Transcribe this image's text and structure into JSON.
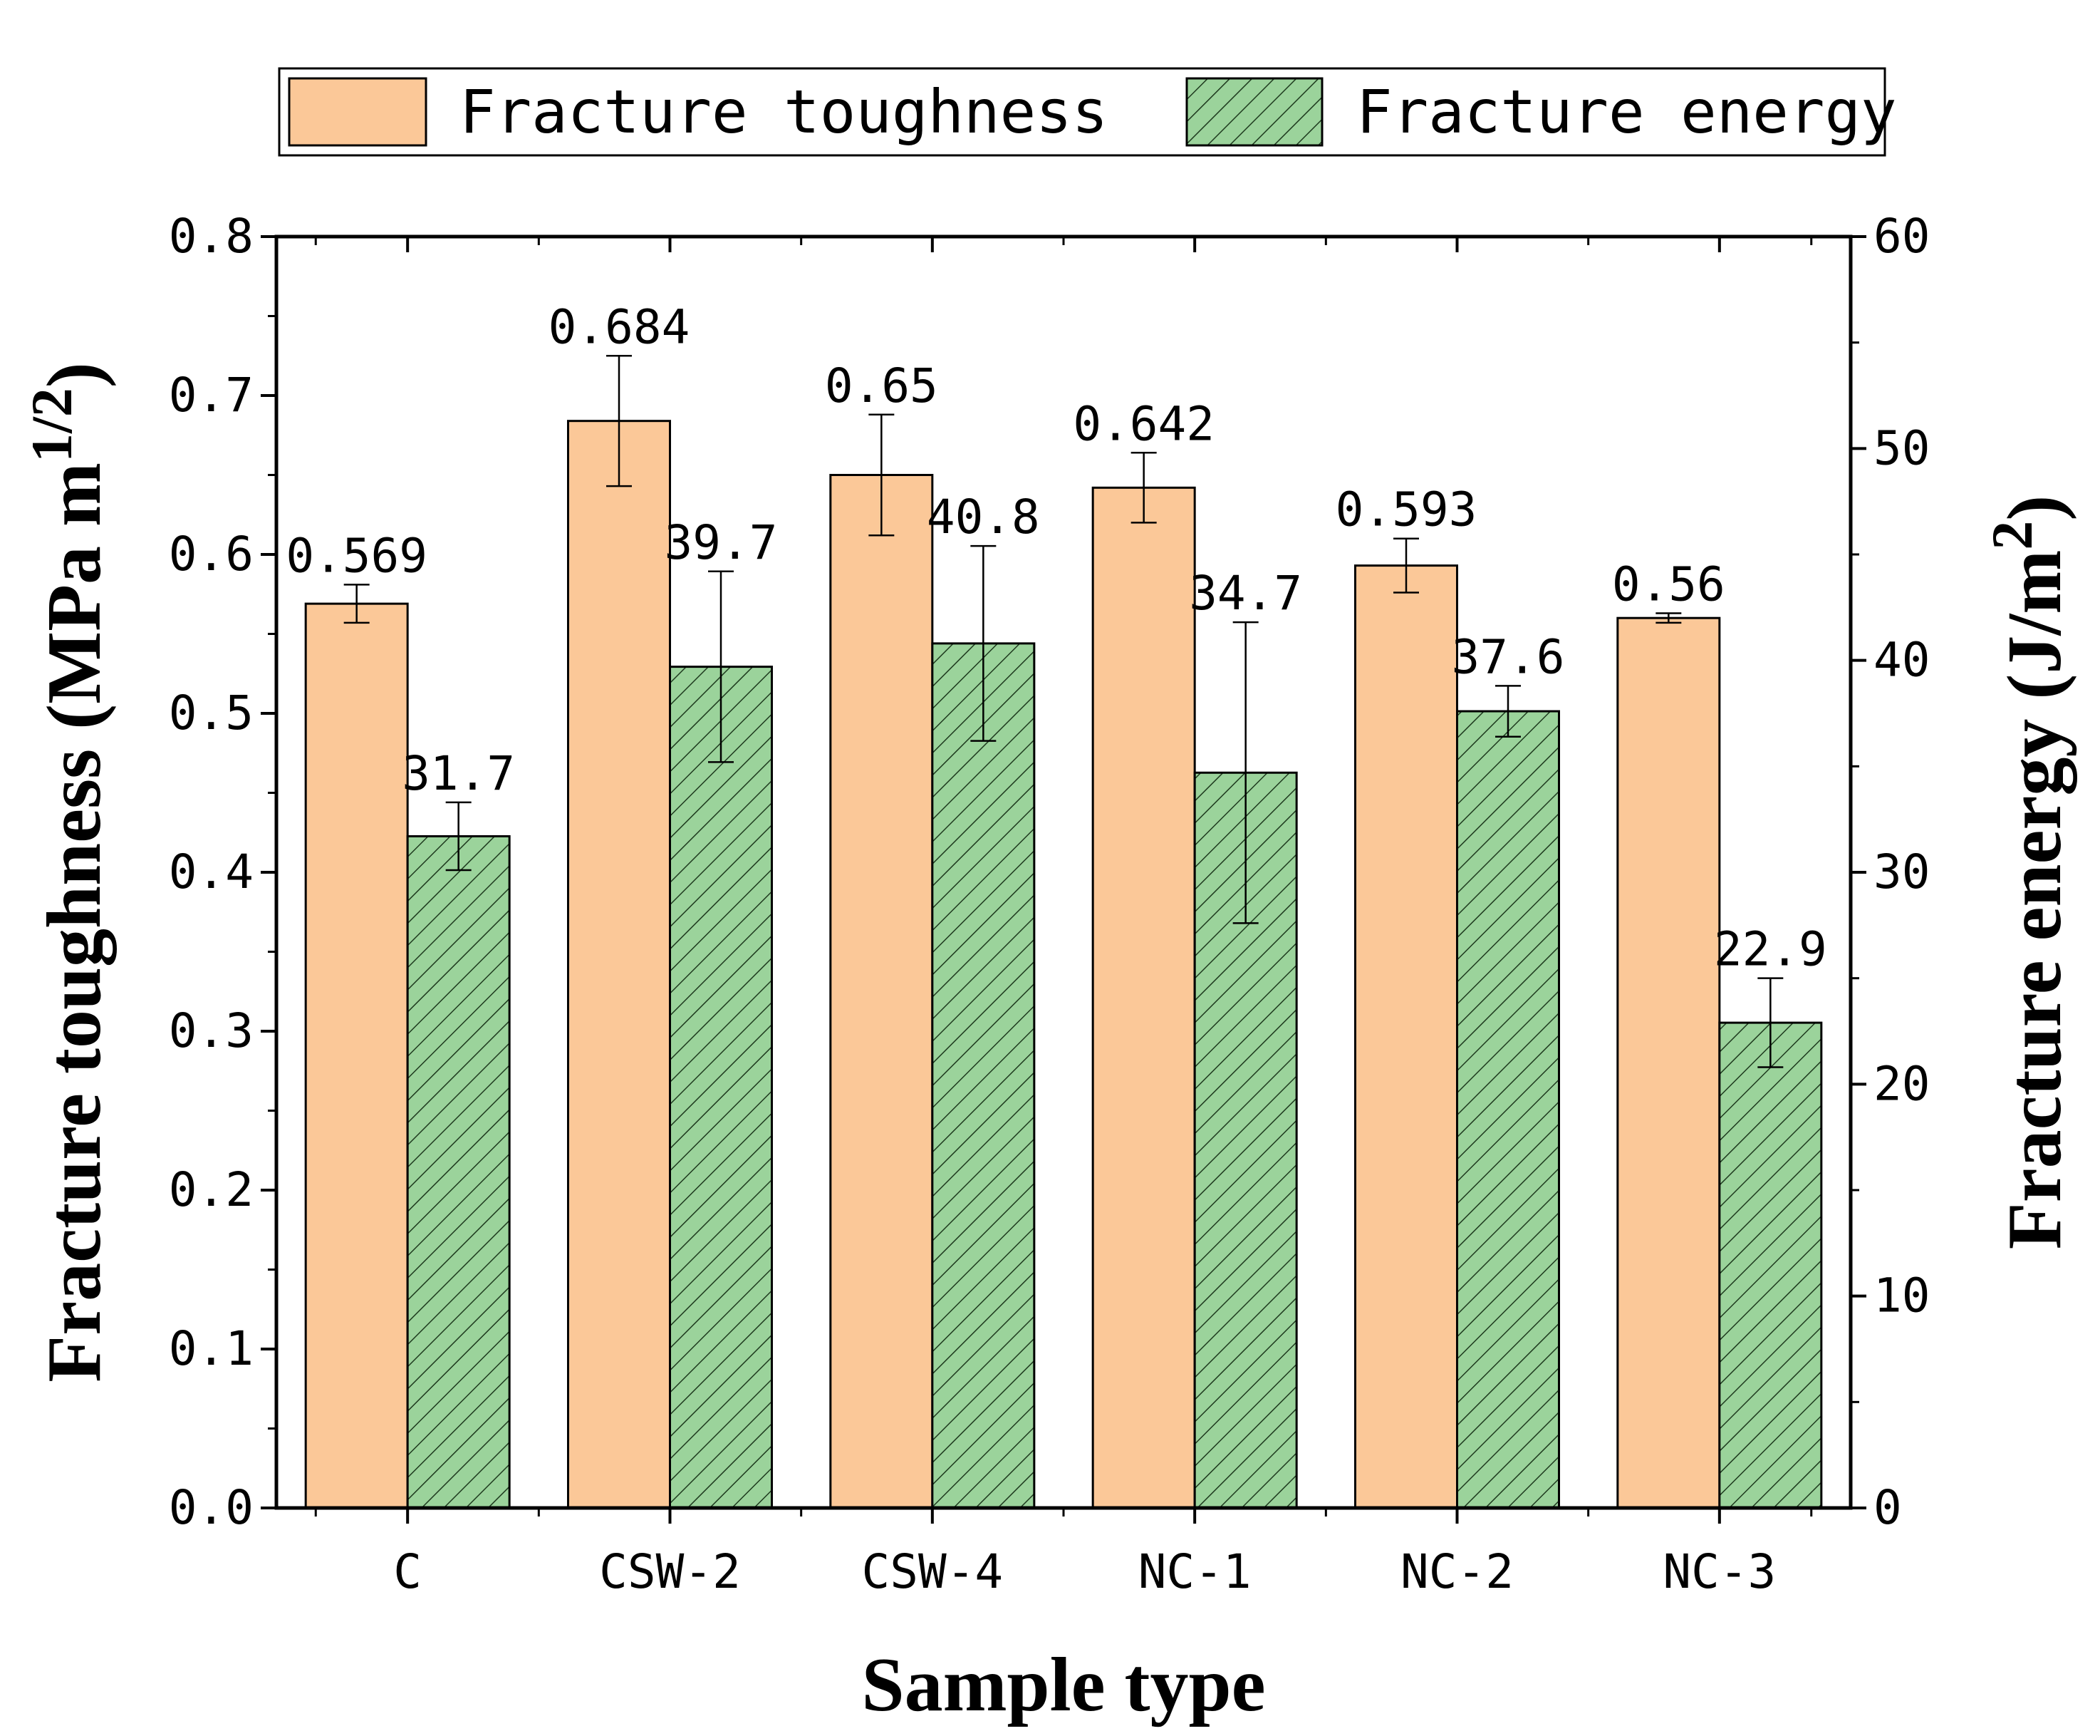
{
  "chart_data": {
    "type": "bar",
    "categories": [
      "C",
      "CSW-2",
      "CSW-4",
      "NC-1",
      "NC-2",
      "NC-3"
    ],
    "series": [
      {
        "name": "Fracture toughness",
        "axis": "left",
        "values": [
          0.569,
          0.684,
          0.65,
          0.642,
          0.593,
          0.56
        ],
        "value_labels": [
          "0.569",
          "0.684",
          "0.65",
          "0.642",
          "0.593",
          "0.56"
        ],
        "errors": [
          0.012,
          0.041,
          0.038,
          0.022,
          0.017,
          0.003
        ],
        "color": "#fbc898",
        "pattern": "solid"
      },
      {
        "name": "Fracture energy",
        "axis": "right",
        "values": [
          31.7,
          39.7,
          40.8,
          34.7,
          37.6,
          22.9
        ],
        "value_labels": [
          "31.7",
          "39.7",
          "40.8",
          "34.7",
          "37.6",
          "22.9"
        ],
        "errors": [
          1.6,
          4.5,
          4.6,
          7.1,
          1.2,
          2.1
        ],
        "color": "#9bd39b",
        "pattern": "hatched"
      }
    ],
    "xlabel": "Sample type",
    "ylabel_left": {
      "main": "Fracture toughness (MPa m",
      "sup": "1/2",
      "close": ")"
    },
    "ylabel_right": {
      "main": "Fracture energy (J/m",
      "sup": "2",
      "close": ")"
    },
    "ylim_left": [
      0.0,
      0.8
    ],
    "ylim_right": [
      0,
      60
    ],
    "yticks_left": [
      "0.0",
      "0.1",
      "0.2",
      "0.3",
      "0.4",
      "0.5",
      "0.6",
      "0.7",
      "0.8"
    ],
    "yticks_right": [
      "0",
      "10",
      "20",
      "30",
      "40",
      "50",
      "60"
    ],
    "legend": {
      "position": "top",
      "items": [
        "Fracture toughness",
        "Fracture energy"
      ]
    },
    "grid": false
  }
}
